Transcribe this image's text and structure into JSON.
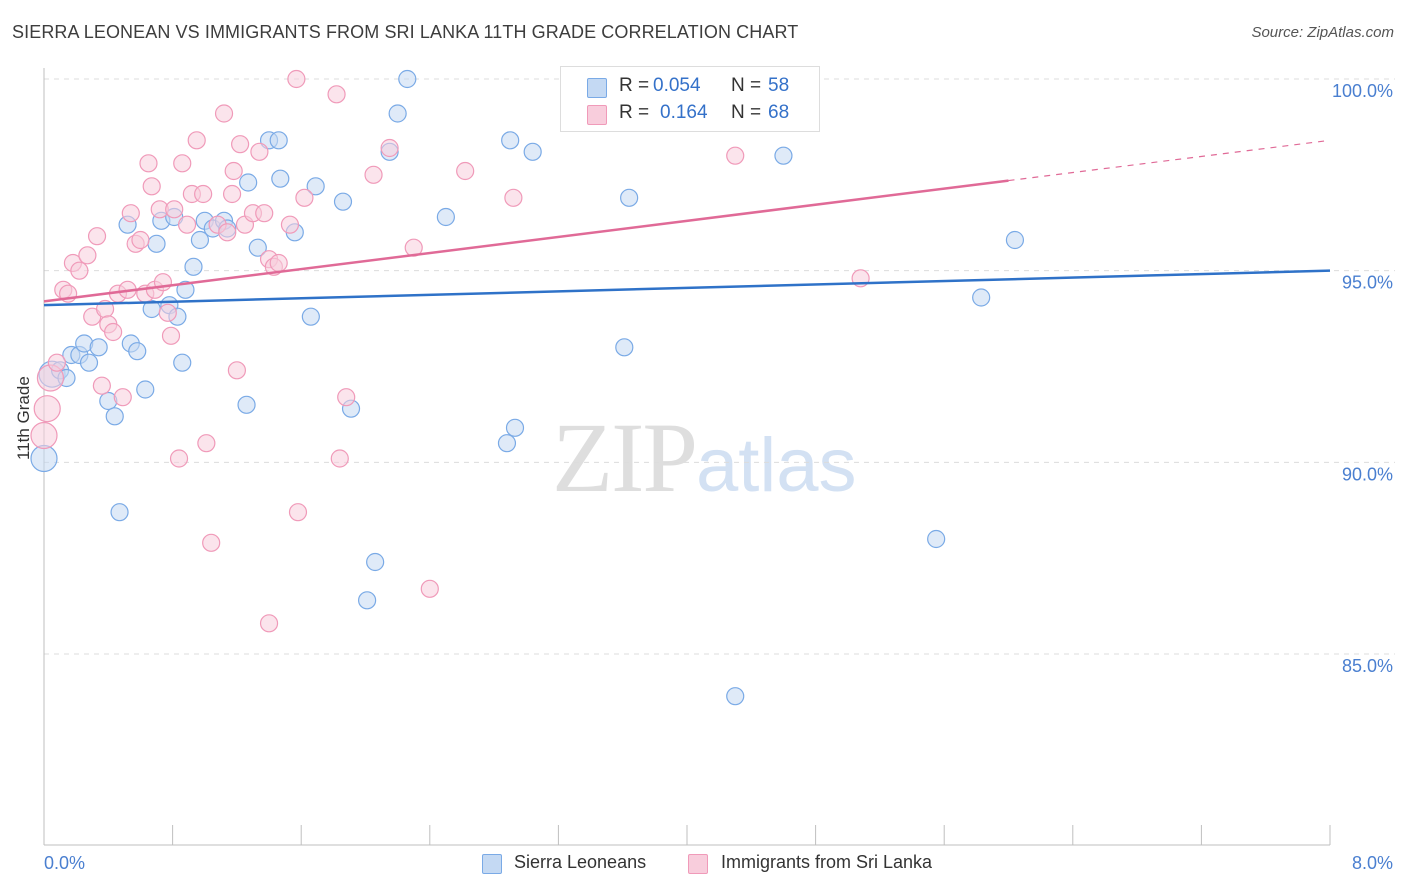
{
  "chart_data": {
    "type": "scatter",
    "title": "SIERRA LEONEAN VS IMMIGRANTS FROM SRI LANKA 11TH GRADE CORRELATION CHART",
    "source": "Source: ZipAtlas.com",
    "xlabel": "",
    "ylabel": "11th Grade",
    "xlim": [
      0,
      8
    ],
    "ylim": [
      80.5,
      100.8
    ],
    "x_tick_labels": {
      "left": "0.0%",
      "right": "8.0%"
    },
    "y_ticks": [
      {
        "value": 100,
        "label": "100.0%"
      },
      {
        "value": 95,
        "label": "95.0%"
      },
      {
        "value": 90,
        "label": "90.0%"
      },
      {
        "value": 85,
        "label": "85.0%"
      }
    ],
    "grid": true,
    "legend_position": "top-center",
    "series": [
      {
        "name": "Sierra Leoneans",
        "color": "#7aaae6",
        "fill": "#c4d9f3",
        "line_color": "#2f72c8",
        "stats": {
          "r_label": "R =",
          "r_value": "0.054",
          "n_label": "N =",
          "n_value": "58"
        },
        "trend": {
          "x0": 0,
          "y0": 94.1,
          "x1": 8,
          "y1": 95.0,
          "solid_to": 8
        },
        "points": [
          [
            0.0,
            90.1
          ],
          [
            0.05,
            92.3
          ],
          [
            0.1,
            92.4
          ],
          [
            0.14,
            92.2
          ],
          [
            0.17,
            92.8
          ],
          [
            0.22,
            92.8
          ],
          [
            0.25,
            93.1
          ],
          [
            0.28,
            92.6
          ],
          [
            0.34,
            93.0
          ],
          [
            0.4,
            91.6
          ],
          [
            0.44,
            91.2
          ],
          [
            0.47,
            88.7
          ],
          [
            0.52,
            96.2
          ],
          [
            0.54,
            93.1
          ],
          [
            0.58,
            92.9
          ],
          [
            0.63,
            91.9
          ],
          [
            0.67,
            94.0
          ],
          [
            0.7,
            95.7
          ],
          [
            0.73,
            96.3
          ],
          [
            0.78,
            94.1
          ],
          [
            0.81,
            96.4
          ],
          [
            0.86,
            92.6
          ],
          [
            0.88,
            94.5
          ],
          [
            0.93,
            95.1
          ],
          [
            0.97,
            95.8
          ],
          [
            1.0,
            96.3
          ],
          [
            1.05,
            96.1
          ],
          [
            1.12,
            96.3
          ],
          [
            1.14,
            96.1
          ],
          [
            1.27,
            97.3
          ],
          [
            1.33,
            95.6
          ],
          [
            1.4,
            98.4
          ],
          [
            1.46,
            98.4
          ],
          [
            1.47,
            97.4
          ],
          [
            1.56,
            96.0
          ],
          [
            1.66,
            93.8
          ],
          [
            1.69,
            97.2
          ],
          [
            1.86,
            96.8
          ],
          [
            1.91,
            91.4
          ],
          [
            2.01,
            86.4
          ],
          [
            2.06,
            87.4
          ],
          [
            2.15,
            98.1
          ],
          [
            2.26,
            100.0
          ],
          [
            2.5,
            96.4
          ],
          [
            2.88,
            90.5
          ],
          [
            2.9,
            98.4
          ],
          [
            2.93,
            90.9
          ],
          [
            3.04,
            98.1
          ],
          [
            3.61,
            93.0
          ],
          [
            3.64,
            96.9
          ],
          [
            4.3,
            83.9
          ],
          [
            4.6,
            98.0
          ],
          [
            5.55,
            88.0
          ],
          [
            5.83,
            94.3
          ],
          [
            6.04,
            95.8
          ],
          [
            1.26,
            91.5
          ],
          [
            0.83,
            93.8
          ],
          [
            2.2,
            99.1
          ]
        ]
      },
      {
        "name": "Immigrants from Sri Lanka",
        "color": "#f09ab9",
        "fill": "#f8cddc",
        "line_color": "#e06a97",
        "stats": {
          "r_label": "R =",
          "r_value": "0.164",
          "n_label": "N =",
          "n_value": "68"
        },
        "trend": {
          "x0": 0,
          "y0": 94.2,
          "x1": 8,
          "y1": 98.4,
          "solid_to": 6.0
        },
        "points": [
          [
            0.0,
            90.7
          ],
          [
            0.02,
            91.4
          ],
          [
            0.04,
            92.2
          ],
          [
            0.08,
            92.6
          ],
          [
            0.12,
            94.5
          ],
          [
            0.15,
            94.4
          ],
          [
            0.18,
            95.2
          ],
          [
            0.22,
            95.0
          ],
          [
            0.27,
            95.4
          ],
          [
            0.3,
            93.8
          ],
          [
            0.33,
            95.9
          ],
          [
            0.36,
            92.0
          ],
          [
            0.38,
            94.0
          ],
          [
            0.4,
            93.6
          ],
          [
            0.43,
            93.4
          ],
          [
            0.46,
            94.4
          ],
          [
            0.49,
            91.7
          ],
          [
            0.52,
            94.5
          ],
          [
            0.54,
            96.5
          ],
          [
            0.57,
            95.7
          ],
          [
            0.6,
            95.8
          ],
          [
            0.63,
            94.4
          ],
          [
            0.65,
            97.8
          ],
          [
            0.67,
            97.2
          ],
          [
            0.69,
            94.5
          ],
          [
            0.72,
            96.6
          ],
          [
            0.74,
            94.7
          ],
          [
            0.77,
            93.9
          ],
          [
            0.79,
            93.3
          ],
          [
            0.81,
            96.6
          ],
          [
            0.84,
            90.1
          ],
          [
            0.86,
            97.8
          ],
          [
            0.89,
            96.2
          ],
          [
            0.92,
            97.0
          ],
          [
            0.95,
            98.4
          ],
          [
            0.99,
            97.0
          ],
          [
            1.01,
            90.5
          ],
          [
            1.04,
            87.9
          ],
          [
            1.08,
            96.2
          ],
          [
            1.12,
            99.1
          ],
          [
            1.14,
            96.0
          ],
          [
            1.17,
            97.0
          ],
          [
            1.2,
            92.4
          ],
          [
            1.22,
            98.3
          ],
          [
            1.25,
            96.2
          ],
          [
            1.3,
            96.5
          ],
          [
            1.34,
            98.1
          ],
          [
            1.37,
            96.5
          ],
          [
            1.4,
            95.3
          ],
          [
            1.43,
            95.1
          ],
          [
            1.46,
            95.2
          ],
          [
            1.53,
            96.2
          ],
          [
            1.58,
            88.7
          ],
          [
            1.62,
            96.9
          ],
          [
            1.57,
            100.0
          ],
          [
            1.82,
            99.6
          ],
          [
            1.84,
            90.1
          ],
          [
            1.88,
            91.7
          ],
          [
            2.05,
            97.5
          ],
          [
            2.15,
            98.2
          ],
          [
            2.3,
            95.6
          ],
          [
            2.4,
            86.7
          ],
          [
            2.62,
            97.6
          ],
          [
            2.92,
            96.9
          ],
          [
            4.3,
            98.0
          ],
          [
            5.08,
            94.8
          ],
          [
            1.4,
            85.8
          ],
          [
            1.18,
            97.6
          ]
        ]
      }
    ]
  },
  "watermark": {
    "zip": "ZIP",
    "atlas": "atlas"
  }
}
